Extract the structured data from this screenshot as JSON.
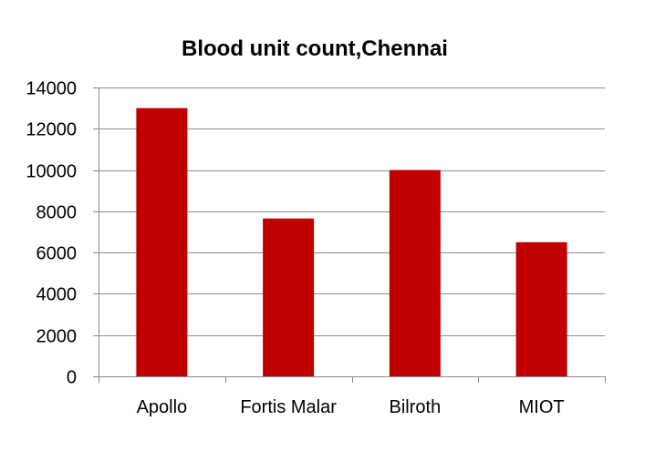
{
  "chart_data": {
    "type": "bar",
    "title": "Blood unit count,Chennai",
    "categories": [
      "Apollo",
      "Fortis Malar",
      "Bilroth",
      "MIOT"
    ],
    "values": [
      13000,
      7650,
      10000,
      6500
    ],
    "ylim": [
      0,
      14000
    ],
    "yticks": [
      "0",
      "2000",
      "4000",
      "6000",
      "8000",
      "10000",
      "12000",
      "14000"
    ],
    "xlabel": "",
    "ylabel": "",
    "grid": true,
    "legend": "none",
    "bar_color": "#c00000",
    "grid_color": "#8c8c8c"
  }
}
